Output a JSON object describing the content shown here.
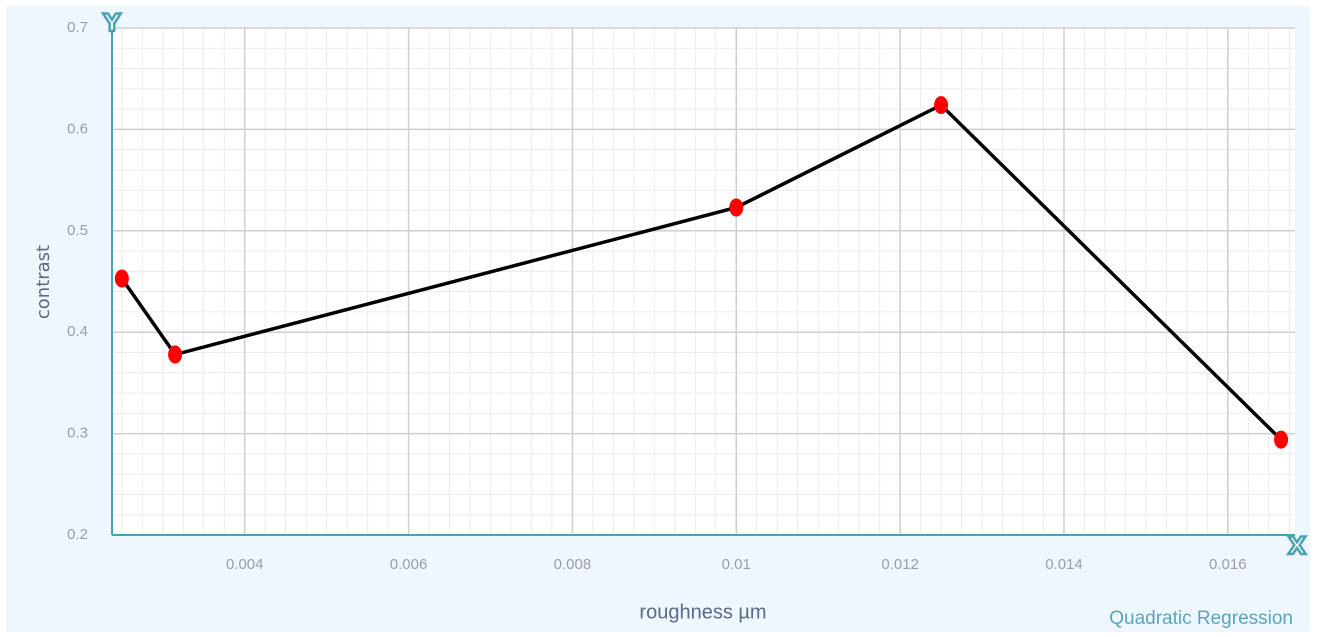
{
  "chart_data": {
    "type": "line",
    "y_label": "contrast",
    "x_label": "roughness µm",
    "annotation": "Quadratic Regression",
    "y_axis_marker": "Y",
    "x_axis_marker": "X",
    "x": [
      0.0025,
      0.00315,
      0.01,
      0.0125,
      0.01665
    ],
    "series": [
      {
        "color": "#000000",
        "marker_color": "#ff0000",
        "values": [
          0.453,
          0.378,
          0.523,
          0.624,
          0.294
        ]
      }
    ],
    "xlim": [
      0.00238,
      0.01682
    ],
    "ylim": [
      0.2,
      0.7
    ],
    "xticks": [
      0.004,
      0.006,
      0.008,
      0.01,
      0.012,
      0.014,
      0.016
    ],
    "yticks": [
      0.2,
      0.3,
      0.4,
      0.5,
      0.6,
      0.7
    ],
    "grid": true
  }
}
